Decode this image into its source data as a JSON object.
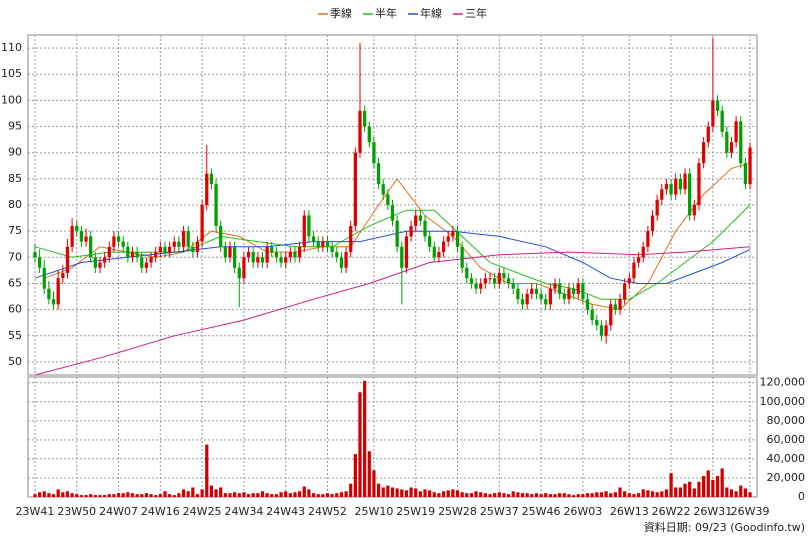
{
  "chart_data": [
    {
      "type": "candlestick",
      "up_color": "#e00000",
      "down_color": "#00a000",
      "xlim": [
        -1.5,
        155.5
      ],
      "xticks": [
        {
          "value": 0,
          "label": "23W41"
        },
        {
          "value": 9,
          "label": "23W50"
        },
        {
          "value": 18,
          "label": "24W07"
        },
        {
          "value": 27,
          "label": "24W16"
        },
        {
          "value": 36,
          "label": "24W25"
        },
        {
          "value": 45,
          "label": "24W34"
        },
        {
          "value": 54,
          "label": "24W43"
        },
        {
          "value": 63,
          "label": "24W52"
        },
        {
          "value": 73,
          "label": "25W10"
        },
        {
          "value": 82,
          "label": "25W19"
        },
        {
          "value": 91,
          "label": "25W28"
        },
        {
          "value": 100,
          "label": "25W37"
        },
        {
          "value": 109,
          "label": "25W46"
        },
        {
          "value": 118,
          "label": "26W03"
        },
        {
          "value": 128,
          "label": "26W13"
        },
        {
          "value": 137,
          "label": "26W22"
        },
        {
          "value": 146,
          "label": "26W31"
        },
        {
          "value": 154,
          "label": "26W39"
        }
      ],
      "ylim": [
        47.5,
        112.5
      ],
      "yticks": [
        50,
        55,
        60,
        65,
        70,
        75,
        80,
        85,
        90,
        95,
        100,
        105,
        110
      ],
      "grid": true,
      "open": [
        71,
        70,
        68,
        64,
        62,
        61,
        66,
        67,
        72,
        76,
        75,
        73,
        74,
        70,
        68,
        69,
        70,
        72,
        74,
        73,
        72,
        70,
        71,
        70,
        68,
        69,
        70,
        71,
        72,
        71,
        72,
        73,
        72,
        75,
        72,
        71,
        73,
        80,
        86,
        84,
        76,
        72,
        70,
        72,
        68,
        66,
        70,
        71,
        69,
        70,
        69,
        72,
        71,
        70,
        69,
        70,
        71,
        70,
        72,
        78,
        74,
        73,
        72,
        73,
        72,
        71,
        70,
        68,
        71,
        76,
        90,
        98,
        95,
        92,
        88,
        84,
        82,
        80,
        77,
        72,
        68,
        74,
        76,
        78,
        77,
        74,
        72,
        70,
        71,
        73,
        74,
        75,
        72,
        68,
        66,
        65,
        64,
        65,
        66,
        66,
        65,
        67,
        66,
        65,
        64,
        62,
        61,
        63,
        64,
        63,
        62,
        61,
        64,
        65,
        63,
        62,
        64,
        63,
        65,
        62,
        60,
        58,
        57,
        55,
        57,
        61,
        60,
        62,
        65,
        66,
        69,
        70,
        72,
        75,
        78,
        81,
        83,
        84,
        82,
        85,
        83,
        86,
        78,
        80,
        88,
        92,
        95,
        100,
        98,
        94,
        90,
        92,
        96,
        88,
        84
      ],
      "high": [
        72.5,
        71.5,
        69.5,
        65.5,
        63.5,
        67.5,
        68.5,
        73.5,
        77.5,
        77,
        76,
        75.5,
        75,
        71,
        70,
        71,
        73,
        75,
        75,
        74,
        73,
        72,
        72,
        71,
        70,
        71,
        72,
        73,
        73,
        73,
        74,
        74,
        76,
        76,
        73,
        74,
        81,
        91.5,
        87,
        85,
        77,
        73,
        73,
        73,
        69,
        71,
        72,
        72,
        71,
        71,
        73,
        73,
        72,
        71,
        71,
        72,
        72,
        73,
        79,
        79,
        75,
        74,
        74,
        74,
        73,
        72,
        71,
        72,
        77,
        91,
        111,
        99,
        96,
        93,
        89,
        85,
        83,
        81,
        78,
        73,
        75,
        77,
        79,
        79,
        78,
        75,
        73,
        72,
        74,
        75,
        76,
        76,
        73,
        69,
        67,
        66,
        66,
        67,
        67,
        67,
        68,
        68,
        67,
        66,
        65,
        63,
        64,
        65,
        65,
        64,
        63,
        65,
        66,
        66,
        64,
        65,
        65,
        66,
        66,
        63,
        61,
        59,
        58,
        58,
        62,
        62,
        63,
        66,
        67,
        70,
        71,
        73,
        76,
        79,
        82,
        84,
        85,
        85,
        86,
        86,
        87,
        87,
        81,
        89,
        93,
        96,
        112,
        101,
        99,
        95,
        93,
        97,
        97,
        89,
        92
      ],
      "low": [
        69,
        67,
        63,
        61,
        60,
        60,
        65,
        66,
        71,
        74,
        72,
        72,
        69,
        67,
        67,
        68,
        69,
        71,
        72,
        71,
        69,
        69,
        69,
        67,
        67,
        68,
        69,
        70,
        70,
        70,
        71,
        71,
        71,
        71,
        70,
        70,
        72,
        79,
        83,
        75,
        71,
        69,
        69,
        67,
        60.5,
        65,
        69,
        68,
        68,
        68,
        68,
        70,
        69,
        68,
        68,
        69,
        69,
        69,
        71,
        73,
        72,
        71,
        71,
        71,
        70,
        69,
        67,
        67,
        70,
        75,
        89,
        94,
        91,
        87,
        83,
        81,
        79,
        76,
        71,
        61,
        67,
        73,
        75,
        76,
        73,
        71,
        69,
        69,
        70,
        72,
        73,
        71,
        67,
        65,
        64,
        63,
        63,
        64,
        65,
        64,
        64,
        65,
        64,
        63,
        61,
        60,
        60,
        62,
        62,
        61,
        60,
        60,
        63,
        62,
        61,
        61,
        62,
        62,
        61,
        59,
        57,
        56,
        54,
        53.5,
        56,
        59,
        59,
        61,
        64,
        65,
        68,
        69,
        71,
        74,
        77,
        80,
        82,
        81,
        81,
        82,
        82,
        77,
        77,
        79,
        87,
        91,
        94,
        97,
        93,
        89,
        89,
        91,
        87,
        83,
        83
      ],
      "close": [
        70,
        68,
        64,
        62,
        61,
        66,
        67,
        72,
        76,
        75,
        73,
        74,
        70,
        68,
        69,
        70,
        72,
        74,
        73,
        72,
        70,
        71,
        70,
        68,
        69,
        70,
        71,
        72,
        71,
        72,
        73,
        72,
        75,
        72,
        71,
        73,
        80,
        86,
        84,
        76,
        72,
        70,
        72,
        68,
        66,
        70,
        71,
        69,
        70,
        69,
        72,
        71,
        70,
        69,
        70,
        71,
        70,
        72,
        78,
        74,
        73,
        72,
        73,
        72,
        71,
        70,
        68,
        71,
        76,
        90,
        98,
        95,
        92,
        88,
        84,
        82,
        80,
        77,
        72,
        68,
        74,
        76,
        78,
        77,
        74,
        72,
        70,
        71,
        73,
        74,
        75,
        72,
        68,
        66,
        65,
        64,
        65,
        66,
        66,
        65,
        67,
        66,
        65,
        64,
        62,
        61,
        63,
        64,
        63,
        62,
        61,
        64,
        65,
        63,
        62,
        64,
        63,
        65,
        62,
        60,
        58,
        57,
        55,
        57,
        61,
        60,
        62,
        65,
        66,
        69,
        70,
        72,
        75,
        78,
        81,
        83,
        84,
        82,
        85,
        83,
        86,
        78,
        80,
        88,
        92,
        95,
        100,
        98,
        94,
        90,
        92,
        96,
        88,
        84,
        91
      ],
      "series": [
        {
          "name": "季線",
          "color": "#e07020",
          "x": [
            2,
            8,
            14,
            20,
            26,
            32,
            38,
            44,
            50,
            56,
            62,
            68,
            74,
            78,
            84,
            90,
            96,
            102,
            108,
            114,
            120,
            126,
            132,
            138,
            144,
            150,
            154
          ],
          "values": [
            66,
            68,
            72,
            71,
            70,
            71,
            75,
            74,
            71,
            71,
            72,
            72,
            80,
            85,
            78,
            74,
            68,
            65,
            65,
            63,
            61,
            60,
            65,
            75,
            82,
            87,
            88
          ]
        },
        {
          "name": "半年",
          "color": "#20c020",
          "x": [
            0,
            8,
            16,
            24,
            32,
            40,
            48,
            56,
            64,
            72,
            80,
            86,
            92,
            98,
            104,
            110,
            116,
            122,
            128,
            134,
            140,
            146,
            154
          ],
          "values": [
            72,
            70,
            71,
            71,
            71,
            74,
            73,
            72,
            72,
            76,
            79,
            79,
            74,
            69,
            67,
            65,
            64,
            62,
            62,
            65,
            69,
            73,
            80
          ]
        },
        {
          "name": "年線",
          "color": "#2050e0",
          "x": [
            0,
            10,
            20,
            30,
            40,
            50,
            60,
            70,
            80,
            90,
            100,
            110,
            118,
            124,
            130,
            136,
            142,
            148,
            154
          ],
          "values": [
            66,
            69,
            70,
            71,
            72,
            72,
            73,
            73,
            75,
            75,
            74,
            72,
            69,
            66,
            65,
            65,
            67,
            69,
            71.5
          ]
        },
        {
          "name": "三年",
          "color": "#d02080",
          "x": [
            0,
            15,
            30,
            45,
            60,
            72,
            85,
            100,
            115,
            130,
            140,
            154
          ],
          "values": [
            47.5,
            51,
            55,
            58,
            62,
            65,
            69,
            70.5,
            71,
            70.5,
            71,
            72
          ]
        }
      ]
    },
    {
      "type": "bar",
      "color": "#d00000",
      "ylim": [
        0,
        126000
      ],
      "yticks": [
        0,
        {
          "value": 20000,
          "label": "20,000"
        },
        {
          "value": 40000,
          "label": "40,000"
        },
        {
          "value": 60000,
          "label": "60,000"
        },
        {
          "value": 80000,
          "label": "80,000"
        },
        {
          "value": 100000,
          "label": "100,000"
        },
        {
          "value": 120000,
          "label": "120,000"
        }
      ],
      "values": [
        3000,
        5000,
        6000,
        4000,
        3000,
        8000,
        5000,
        6000,
        4000,
        3000,
        2000,
        2000,
        3000,
        2000,
        2000,
        2000,
        3000,
        3000,
        4000,
        4000,
        5000,
        4000,
        3000,
        3000,
        4000,
        3000,
        2000,
        3000,
        6000,
        3000,
        2000,
        4000,
        8000,
        6000,
        10000,
        3000,
        8000,
        55000,
        12000,
        8000,
        10000,
        4000,
        4000,
        5000,
        4000,
        5000,
        3000,
        4000,
        4000,
        6000,
        4000,
        3000,
        3000,
        5000,
        6000,
        4000,
        5000,
        6000,
        11000,
        8000,
        4000,
        3000,
        3000,
        4000,
        3000,
        4000,
        5000,
        6000,
        14000,
        45000,
        110000,
        122000,
        48000,
        28000,
        14000,
        10000,
        12000,
        10000,
        9000,
        8000,
        7000,
        10000,
        9000,
        6000,
        8000,
        7000,
        5000,
        4000,
        6000,
        7000,
        8000,
        7000,
        5000,
        4000,
        4000,
        6000,
        5000,
        4000,
        3000,
        4000,
        5000,
        4000,
        3000,
        6000,
        5000,
        4000,
        4000,
        3000,
        4000,
        3000,
        4000,
        3000,
        3000,
        4000,
        4000,
        3000,
        2000,
        3000,
        3000,
        4000,
        4000,
        5000,
        5000,
        6000,
        4000,
        5000,
        10000,
        6000,
        4000,
        3000,
        4000,
        8000,
        7000,
        6000,
        5000,
        6000,
        8000,
        25000,
        10000,
        10000,
        14000,
        16000,
        9000,
        16000,
        22000,
        28000,
        18000,
        22000,
        30000,
        10000,
        8000,
        6000,
        12000,
        9000,
        5000
      ]
    }
  ],
  "footer": "資料日期: 09/23 (Goodinfo.tw)"
}
